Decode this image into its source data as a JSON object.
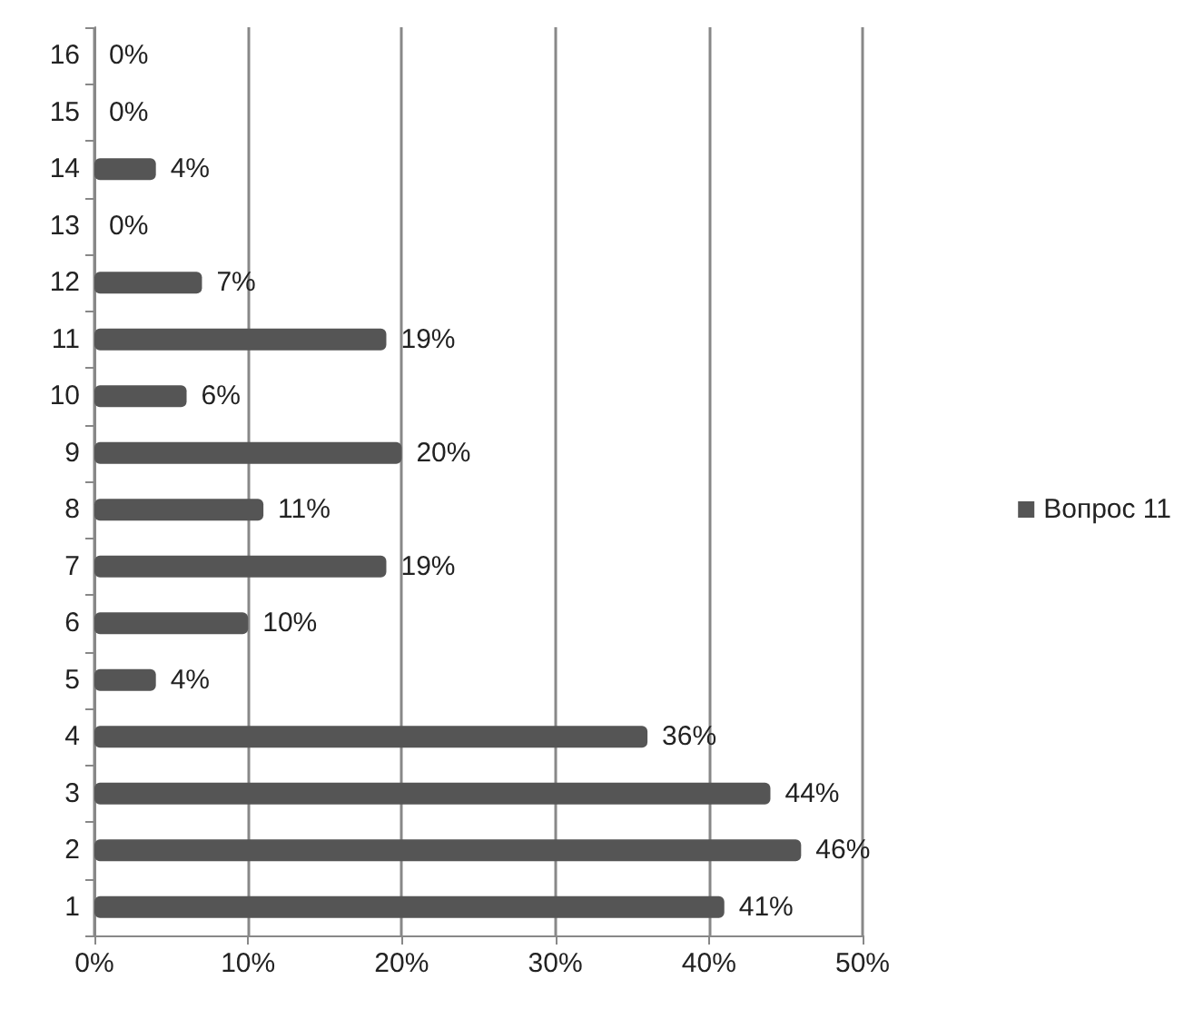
{
  "chart_data": {
    "type": "bar",
    "orientation": "horizontal",
    "categories": [
      "16",
      "15",
      "14",
      "13",
      "12",
      "11",
      "10",
      "9",
      "8",
      "7",
      "6",
      "5",
      "4",
      "3",
      "2",
      "1"
    ],
    "series": [
      {
        "name": "Вопрос 11",
        "color": "#555555",
        "values": [
          0,
          0,
          4,
          0,
          7,
          19,
          6,
          20,
          11,
          19,
          10,
          4,
          36,
          44,
          46,
          41
        ],
        "value_labels": [
          "0%",
          "0%",
          "4%",
          "0%",
          "7%",
          "19%",
          "6%",
          "20%",
          "11%",
          "19%",
          "10%",
          "4%",
          "36%",
          "44%",
          "46%",
          "41%"
        ]
      }
    ],
    "xlim": [
      0,
      50
    ],
    "xticks": [
      {
        "value": 0,
        "label": "0%"
      },
      {
        "value": 10,
        "label": "10%"
      },
      {
        "value": 20,
        "label": "20%"
      },
      {
        "value": 30,
        "label": "30%"
      },
      {
        "value": 40,
        "label": "40%"
      },
      {
        "value": 50,
        "label": "50%"
      }
    ],
    "grid": "x",
    "legend": "right"
  }
}
